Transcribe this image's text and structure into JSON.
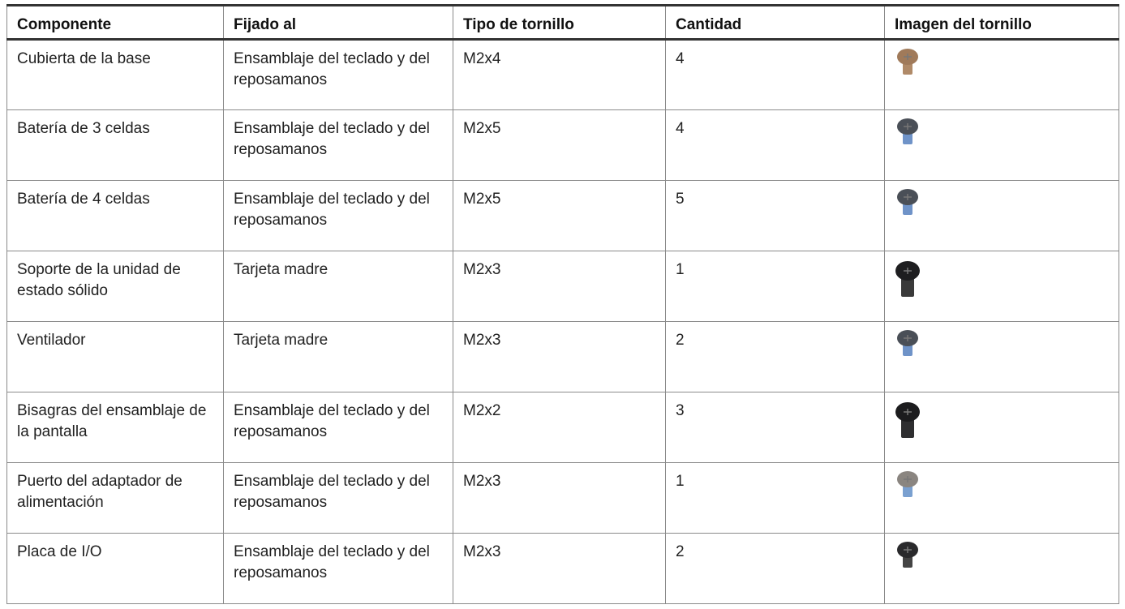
{
  "table": {
    "header": [
      "Componente",
      "Fijado al",
      "Tipo de tornillo",
      "Cantidad",
      "Imagen del tornillo"
    ],
    "rows": [
      [
        "Cubierta de la base",
        "Ensamblaje del teclado y del reposamanos",
        "M2x4",
        "4"
      ],
      [
        "Batería de 3 celdas",
        "Ensamblaje del teclado y del reposamanos",
        "M2x5",
        "4"
      ],
      [
        "Batería de 4 celdas",
        "Ensamblaje del teclado y del reposamanos",
        "M2x5",
        "5"
      ],
      [
        "Soporte de la unidad de estado sólido",
        "Tarjeta madre",
        "M2x3",
        "1"
      ],
      [
        "Ventilador",
        "Tarjeta madre",
        "M2x3",
        "2"
      ],
      [
        "Bisagras del ensamblaje de la pantalla",
        "Ensamblaje del teclado y del reposamanos",
        "M2x2",
        "3"
      ],
      [
        "Puerto del adaptador de alimentación",
        "Ensamblaje del teclado y del reposamanos",
        "M2x3",
        "1"
      ],
      [
        "Placa de I/O",
        "Ensamblaje del teclado y del reposamanos",
        "M2x3",
        "2"
      ]
    ]
  }
}
